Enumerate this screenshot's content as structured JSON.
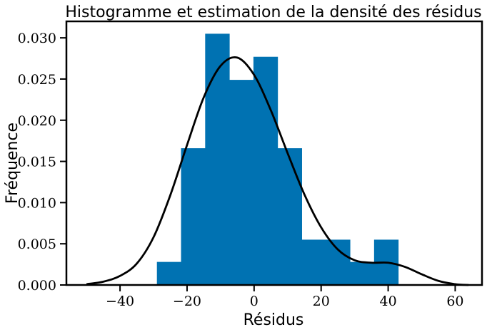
{
  "chart_data": {
    "type": "bar",
    "title": "Histogramme et estimation de la densité des résidus",
    "xlabel": "Résidus",
    "ylabel": "Fréquence",
    "xlim": [
      -56,
      68
    ],
    "ylim": [
      0,
      0.032
    ],
    "x_ticks": [
      -40,
      -20,
      0,
      20,
      40,
      60
    ],
    "x_tick_labels": [
      "−40",
      "−20",
      "0",
      "20",
      "40",
      "60"
    ],
    "y_ticks": [
      0,
      0.005,
      0.01,
      0.015,
      0.02,
      0.025,
      0.03
    ],
    "y_tick_labels": [
      "0.000",
      "0.005",
      "0.010",
      "0.015",
      "0.020",
      "0.025",
      "0.030"
    ],
    "histogram": {
      "bin_edges": [
        -29,
        -21.8,
        -14.6,
        -7.4,
        -0.2,
        7.0,
        14.2,
        21.4,
        28.6,
        35.8,
        43.0
      ],
      "values": [
        0.0028,
        0.0166,
        0.0305,
        0.0249,
        0.0277,
        0.0166,
        0.0055,
        0.0055,
        0.0028,
        0.0055
      ],
      "color": "#0072b2"
    },
    "series": [
      {
        "type": "line",
        "x": [
          -50,
          -45,
          -40,
          -35,
          -30,
          -25,
          -20,
          -15,
          -10,
          -5,
          0,
          5,
          10,
          15,
          20,
          25,
          30,
          35,
          40,
          45,
          50,
          55,
          60,
          64
        ],
        "y": [
          0.0001,
          0.0004,
          0.0011,
          0.0026,
          0.0058,
          0.0109,
          0.017,
          0.0228,
          0.0266,
          0.0276,
          0.0255,
          0.0212,
          0.016,
          0.011,
          0.007,
          0.0043,
          0.003,
          0.0027,
          0.0027,
          0.0022,
          0.0013,
          0.0005,
          0.0001,
          0.0
        ],
        "color": "#000000"
      }
    ],
    "grid": false,
    "legend": "none"
  }
}
